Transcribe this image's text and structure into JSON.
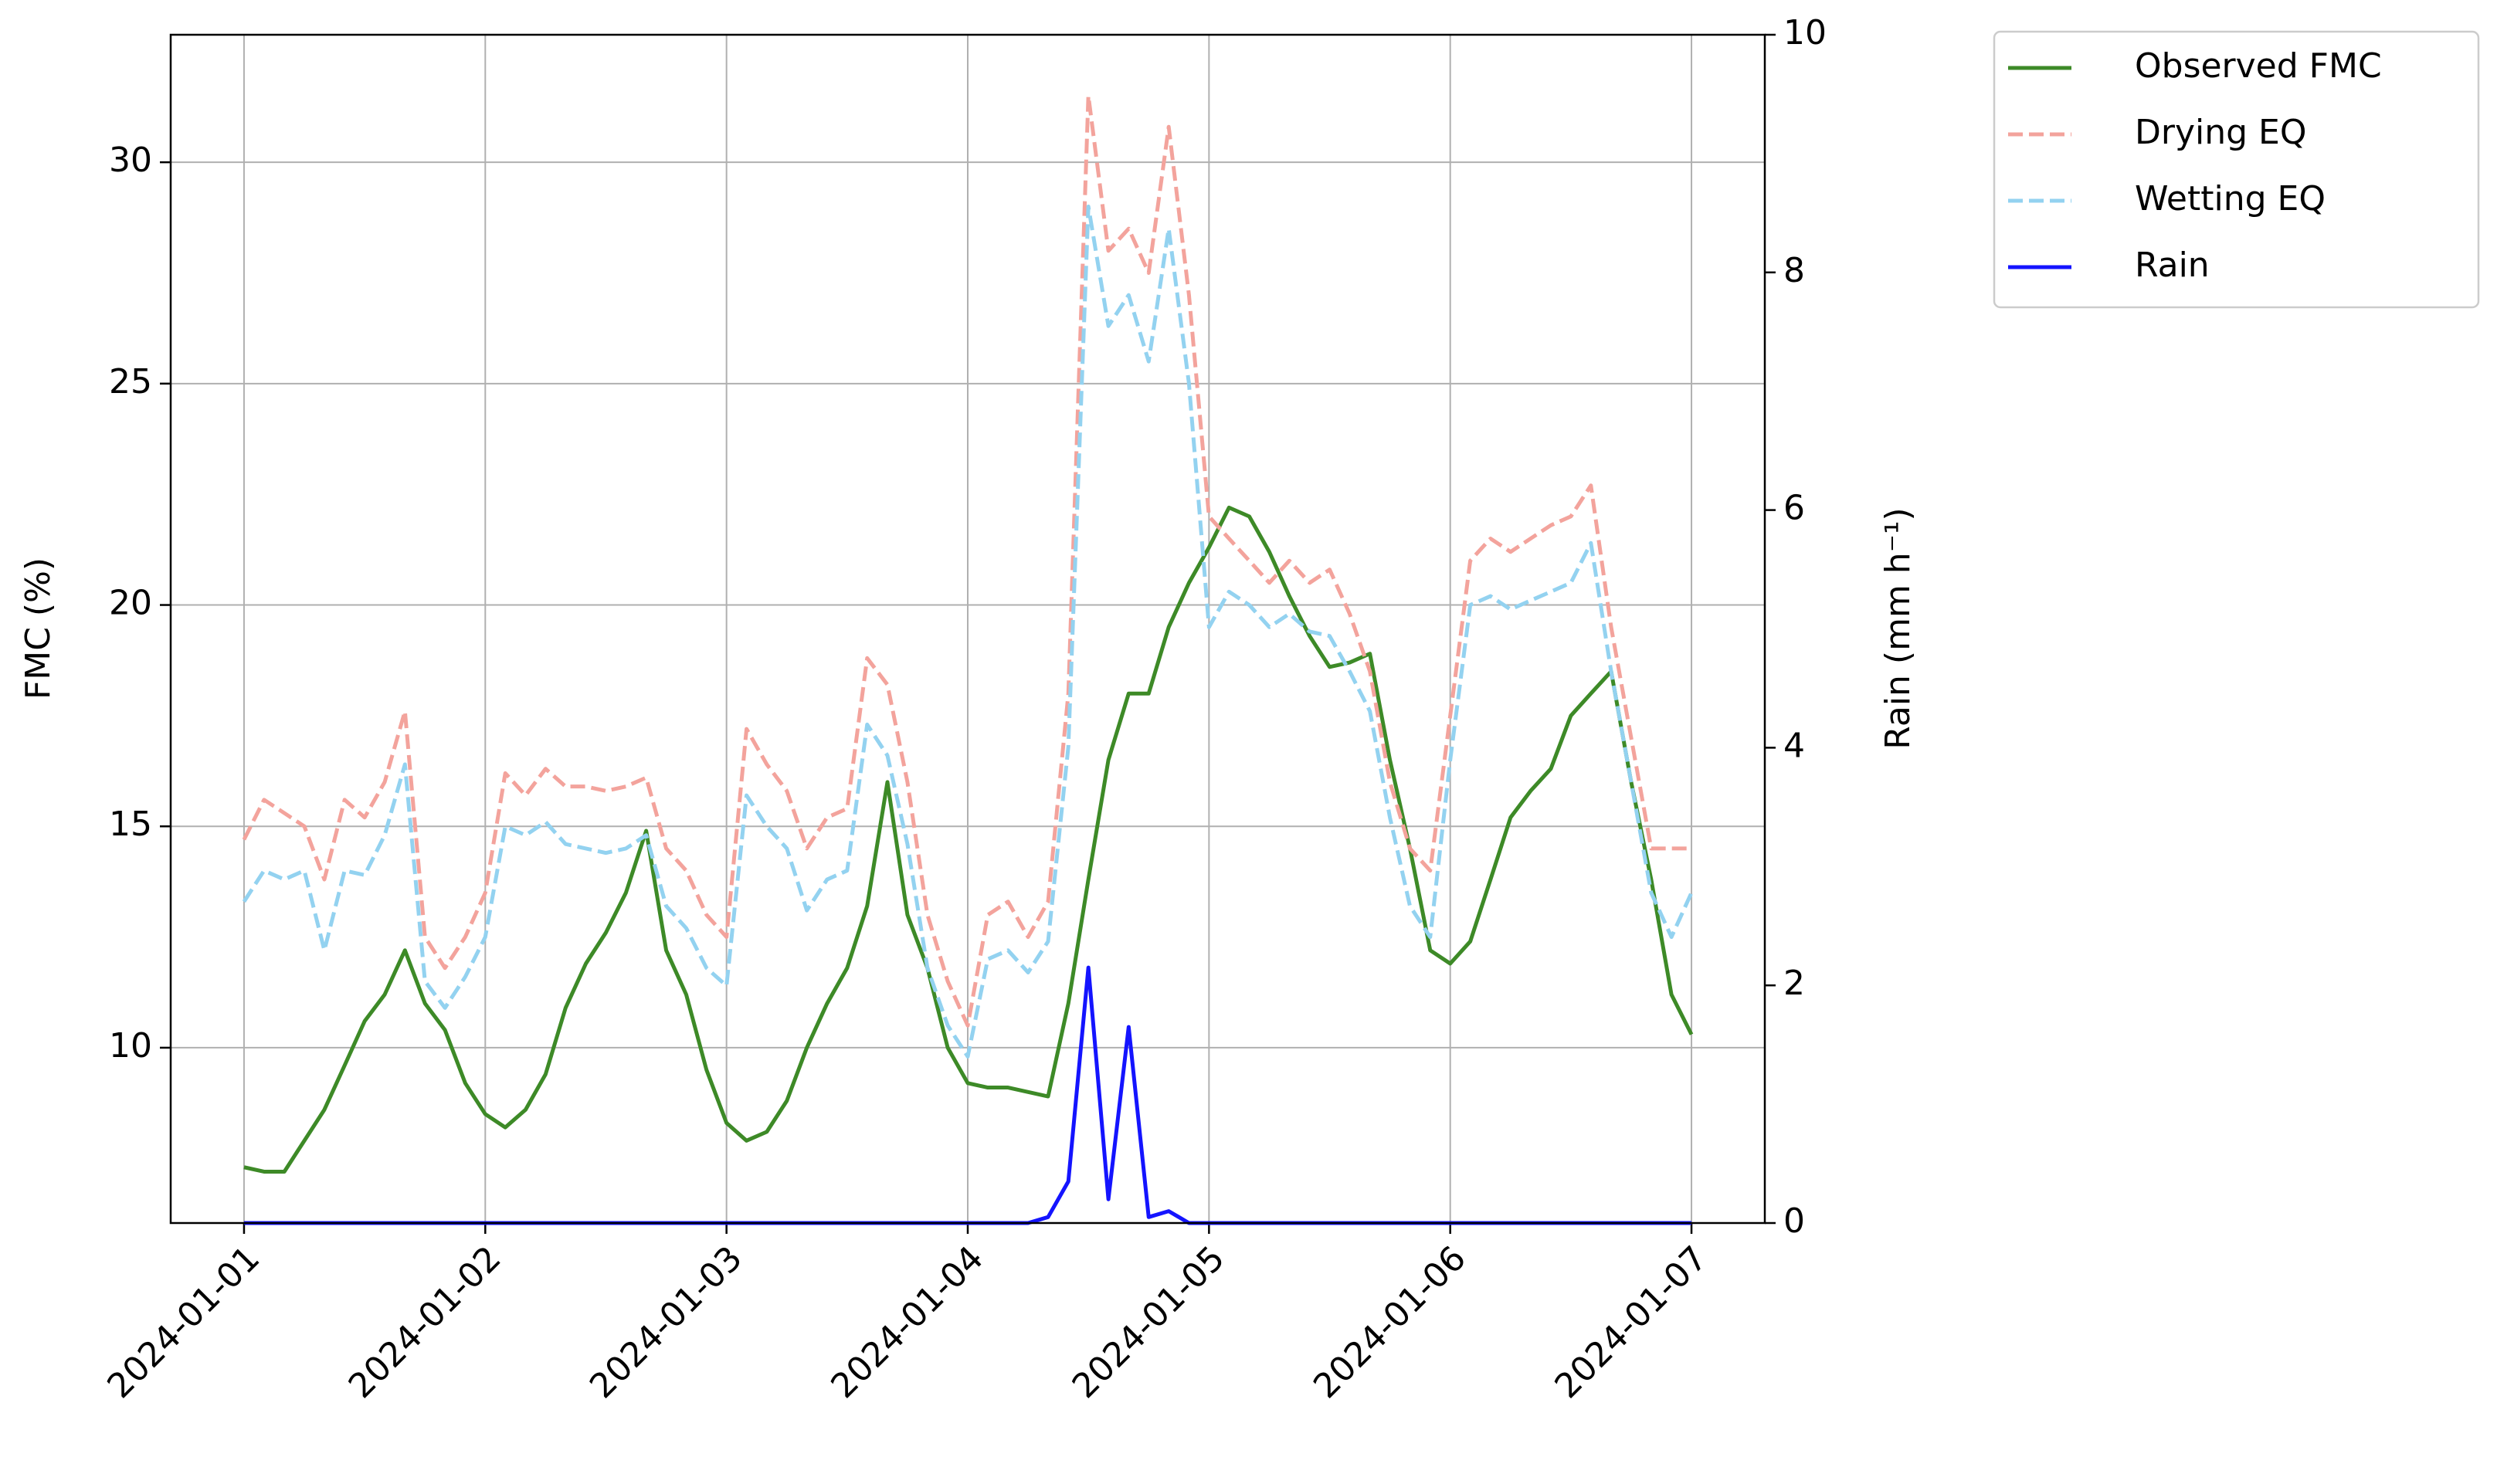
{
  "chart_data": {
    "type": "line",
    "ylabel": "FMC (%)",
    "y2label": "Rain (mm h⁻¹)",
    "x": [
      0,
      0.083,
      0.167,
      0.25,
      0.333,
      0.417,
      0.5,
      0.583,
      0.667,
      0.75,
      0.833,
      0.917,
      1,
      1.083,
      1.167,
      1.25,
      1.333,
      1.417,
      1.5,
      1.583,
      1.667,
      1.75,
      1.833,
      1.917,
      2,
      2.083,
      2.167,
      2.25,
      2.333,
      2.417,
      2.5,
      2.583,
      2.667,
      2.75,
      2.833,
      2.917,
      3,
      3.083,
      3.167,
      3.25,
      3.333,
      3.417,
      3.5,
      3.583,
      3.667,
      3.75,
      3.833,
      3.917,
      4,
      4.083,
      4.167,
      4.25,
      4.333,
      4.417,
      4.5,
      4.583,
      4.667,
      4.75,
      4.833,
      4.917,
      5,
      5.083,
      5.167,
      5.25,
      5.333,
      5.417,
      5.5,
      5.583,
      5.667,
      5.75,
      5.833,
      5.917,
      6
    ],
    "xlim": [
      -0.304,
      6.304
    ],
    "xticks": [
      {
        "value": 0,
        "label": "2024-01-01"
      },
      {
        "value": 1,
        "label": "2024-01-02"
      },
      {
        "value": 2,
        "label": "2024-01-03"
      },
      {
        "value": 3,
        "label": "2024-01-04"
      },
      {
        "value": 4,
        "label": "2024-01-05"
      },
      {
        "value": 5,
        "label": "2024-01-06"
      },
      {
        "value": 6,
        "label": "2024-01-07"
      }
    ],
    "ylim": [
      6.04,
      32.88
    ],
    "yticks": [
      10,
      15,
      20,
      25,
      30
    ],
    "y2lim": [
      0,
      10
    ],
    "y2ticks": [
      0,
      2,
      4,
      6,
      8,
      10
    ],
    "grid": true,
    "legend": "outside upper right",
    "series": [
      {
        "name": "Observed FMC",
        "color": "#3d8a27",
        "linestyle": "solid",
        "values": [
          7.3,
          7.2,
          7.2,
          7.9,
          8.6,
          9.6,
          10.6,
          11.2,
          12.2,
          11.0,
          10.4,
          9.2,
          8.5,
          8.2,
          8.6,
          9.4,
          10.9,
          11.9,
          12.6,
          13.5,
          14.9,
          12.2,
          11.2,
          9.5,
          8.3,
          7.9,
          8.1,
          8.8,
          10.0,
          11.0,
          11.8,
          13.2,
          16.0,
          13.0,
          11.8,
          10.0,
          9.2,
          9.1,
          9.1,
          9.0,
          8.9,
          11.0,
          13.8,
          16.5,
          18.0,
          18.0,
          19.5,
          20.5,
          21.3,
          22.2,
          22.0,
          21.2,
          20.2,
          19.3,
          18.6,
          18.7,
          18.9,
          16.5,
          14.5,
          12.2,
          11.9,
          12.4,
          13.8,
          15.2,
          15.8,
          16.3,
          17.5,
          18.0,
          18.5,
          16.0,
          13.8,
          11.2,
          10.3
        ]
      },
      {
        "name": "Drying EQ",
        "color": "#f3a39c",
        "linestyle": "dashed",
        "values": [
          14.7,
          15.6,
          15.3,
          15.0,
          13.8,
          15.6,
          15.2,
          16.0,
          17.6,
          12.5,
          11.8,
          12.5,
          13.5,
          16.2,
          15.7,
          16.3,
          15.9,
          15.9,
          15.8,
          15.9,
          16.1,
          14.5,
          14.0,
          13.0,
          12.5,
          17.2,
          16.4,
          15.8,
          14.5,
          15.2,
          15.4,
          18.8,
          18.2,
          16.0,
          13.0,
          11.5,
          10.5,
          13.0,
          13.3,
          12.5,
          13.3,
          18.0,
          31.5,
          28.0,
          28.5,
          27.5,
          30.8,
          27.0,
          22.0,
          21.5,
          21.0,
          20.5,
          21.0,
          20.5,
          20.8,
          19.8,
          18.5,
          16.0,
          14.5,
          14.0,
          17.5,
          21.0,
          21.5,
          21.2,
          21.5,
          21.8,
          22.0,
          22.7,
          19.5,
          17.0,
          14.5,
          14.5,
          14.5
        ]
      },
      {
        "name": "Wetting EQ",
        "color": "#93d2f0",
        "linestyle": "dashed",
        "values": [
          13.3,
          14.0,
          13.8,
          14.0,
          12.2,
          14.0,
          13.9,
          14.8,
          16.4,
          11.5,
          10.9,
          11.6,
          12.5,
          15.0,
          14.8,
          15.1,
          14.6,
          14.5,
          14.4,
          14.5,
          14.8,
          13.2,
          12.7,
          11.8,
          11.4,
          15.7,
          15.0,
          14.5,
          13.1,
          13.8,
          14.0,
          17.3,
          16.6,
          14.6,
          11.8,
          10.5,
          9.8,
          12.0,
          12.2,
          11.7,
          12.4,
          16.8,
          29.0,
          26.3,
          27.0,
          25.5,
          28.5,
          25.0,
          19.5,
          20.3,
          20.0,
          19.5,
          19.8,
          19.4,
          19.3,
          18.5,
          17.6,
          15.2,
          13.2,
          12.5,
          16.5,
          20.0,
          20.2,
          19.9,
          20.1,
          20.3,
          20.5,
          21.4,
          18.5,
          16.0,
          13.5,
          12.5,
          13.5
        ]
      },
      {
        "name": "Rain",
        "color": "#1414ff",
        "linestyle": "solid",
        "axis": "y2",
        "values": [
          0,
          0,
          0,
          0,
          0,
          0,
          0,
          0,
          0,
          0,
          0,
          0,
          0,
          0,
          0,
          0,
          0,
          0,
          0,
          0,
          0,
          0,
          0,
          0,
          0,
          0,
          0,
          0,
          0,
          0,
          0,
          0,
          0,
          0,
          0,
          0,
          0,
          0,
          0,
          0,
          0.05,
          0.35,
          2.15,
          0.2,
          1.65,
          0.05,
          0.1,
          0,
          0,
          0,
          0,
          0,
          0,
          0,
          0,
          0,
          0,
          0,
          0,
          0,
          0,
          0,
          0,
          0,
          0,
          0,
          0,
          0,
          0,
          0,
          0,
          0,
          0
        ]
      }
    ]
  }
}
